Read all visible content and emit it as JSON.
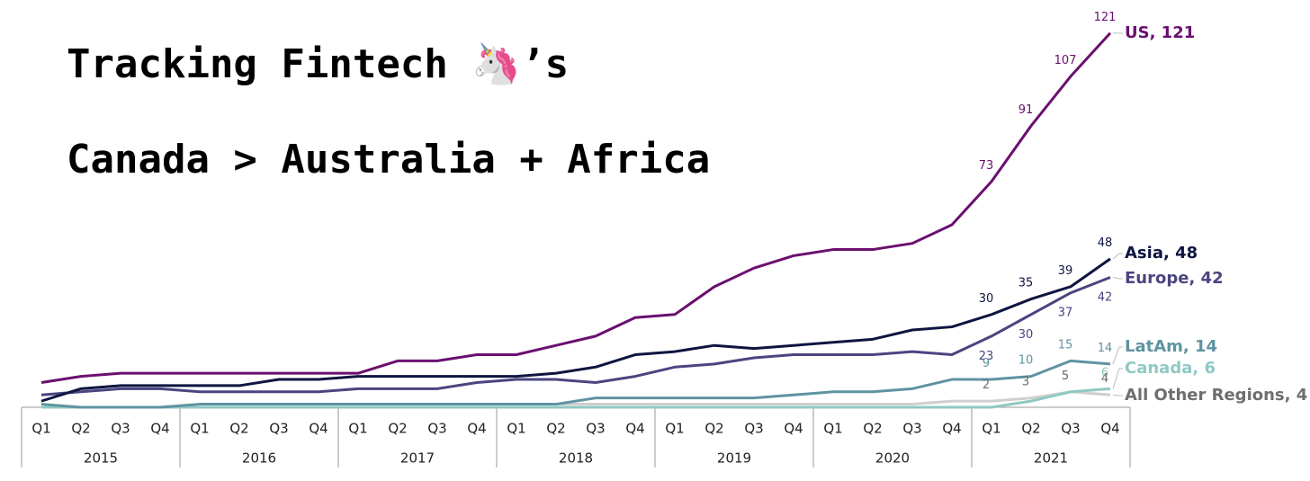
{
  "chart_data": {
    "type": "line",
    "title": "Tracking Fintech 🦄’s",
    "subtitle": "Canada > Australia + Africa",
    "categories": [
      "Q1",
      "Q2",
      "Q3",
      "Q4",
      "Q1",
      "Q2",
      "Q3",
      "Q4",
      "Q1",
      "Q2",
      "Q3",
      "Q4",
      "Q1",
      "Q2",
      "Q3",
      "Q4",
      "Q1",
      "Q2",
      "Q3",
      "Q4",
      "Q1",
      "Q2",
      "Q3",
      "Q4",
      "Q1",
      "Q2",
      "Q3",
      "Q4"
    ],
    "year_groups": [
      "2015",
      "2016",
      "2017",
      "2018",
      "2019",
      "2020",
      "2021"
    ],
    "ylim": [
      0,
      125
    ],
    "series": [
      {
        "name": "US",
        "end_label": "US, 121",
        "color": "#6b0f6f",
        "label_side": "above",
        "labeled_points": [
          24,
          25,
          26,
          27
        ],
        "values": [
          8,
          10,
          11,
          11,
          11,
          11,
          11,
          11,
          11,
          15,
          15,
          17,
          17,
          20,
          23,
          29,
          30,
          39,
          45,
          49,
          51,
          51,
          53,
          59,
          73,
          91,
          107,
          121
        ]
      },
      {
        "name": "Asia",
        "end_label": "Asia, 48",
        "color": "#0e1540",
        "label_side": "above",
        "labeled_points": [
          24,
          25,
          26,
          27
        ],
        "values": [
          2,
          6,
          7,
          7,
          7,
          7,
          9,
          9,
          10,
          10,
          10,
          10,
          10,
          11,
          13,
          17,
          18,
          20,
          19,
          20,
          21,
          22,
          25,
          26,
          30,
          35,
          39,
          48
        ]
      },
      {
        "name": "Europe",
        "end_label": "Europe, 42",
        "color": "#4a4580",
        "label_side": "below",
        "labeled_points": [
          24,
          25,
          26,
          27
        ],
        "values": [
          4,
          5,
          6,
          6,
          5,
          5,
          5,
          5,
          6,
          6,
          6,
          8,
          9,
          9,
          8,
          10,
          13,
          14,
          16,
          17,
          17,
          17,
          18,
          17,
          23,
          30,
          37,
          42
        ]
      },
      {
        "name": "LatAm",
        "end_label": "LatAm, 14",
        "color": "#5f93a0",
        "label_side": "above",
        "labeled_points": [
          24,
          25,
          26,
          27
        ],
        "values": [
          1,
          0,
          0,
          0,
          1,
          1,
          1,
          1,
          1,
          1,
          1,
          1,
          1,
          1,
          3,
          3,
          3,
          3,
          3,
          4,
          5,
          5,
          6,
          9,
          9,
          10,
          15,
          14
        ]
      },
      {
        "name": "Canada",
        "end_label": "Canada, 6",
        "color": "#8fc9c4",
        "label_side": "above",
        "labeled_points": [
          26,
          27
        ],
        "values": [
          0,
          0,
          0,
          0,
          0,
          0,
          0,
          0,
          0,
          0,
          0,
          0,
          0,
          0,
          0,
          0,
          0,
          0,
          0,
          0,
          0,
          0,
          0,
          0,
          0,
          2,
          5,
          6
        ]
      },
      {
        "name": "All Other Regions",
        "end_label": "All Other Regions, 4",
        "color": "#cfcfcf",
        "label_color": "#6e6e6e",
        "label_side": "above",
        "labeled_points": [
          24,
          25,
          26,
          27
        ],
        "values": [
          0,
          0,
          0,
          0,
          1,
          1,
          1,
          1,
          1,
          1,
          1,
          1,
          1,
          1,
          1,
          1,
          1,
          1,
          1,
          1,
          1,
          1,
          1,
          2,
          2,
          3,
          5,
          4
        ]
      }
    ]
  }
}
